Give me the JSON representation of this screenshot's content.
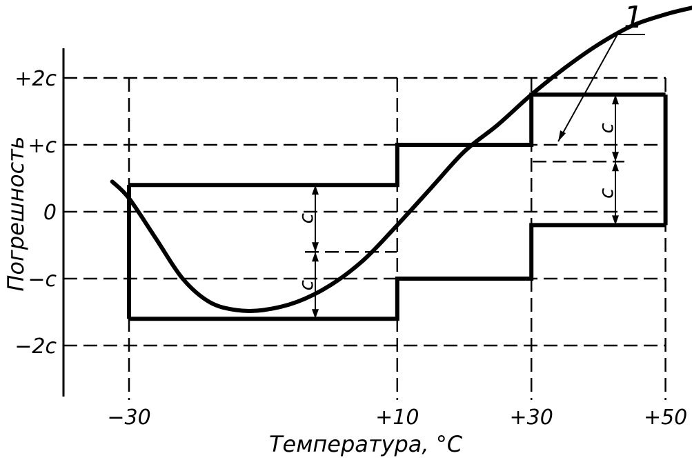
{
  "chart_data": {
    "type": "line",
    "xlabel": "Температура, °C",
    "ylabel": "Погрешность",
    "x_ticks": [
      "−30",
      "+10",
      "+30",
      "+50"
    ],
    "x_tick_values": [
      -30,
      10,
      30,
      50
    ],
    "y_ticks": [
      "+2c",
      "+c",
      "0",
      "−c",
      "−2c"
    ],
    "y_tick_values": [
      2,
      1,
      0,
      -1,
      -2
    ],
    "grid": "dashed",
    "callout": "1",
    "dimension_label": "c",
    "error_curve": [
      [
        -32.5,
        0.45
      ],
      [
        -30,
        0.2
      ],
      [
        -26,
        -0.4
      ],
      [
        -22,
        -1.0
      ],
      [
        -18,
        -1.35
      ],
      [
        -14,
        -1.47
      ],
      [
        -10,
        -1.47
      ],
      [
        -5,
        -1.35
      ],
      [
        0,
        -1.1
      ],
      [
        5,
        -0.72
      ],
      [
        10,
        -0.2
      ],
      [
        15,
        0.35
      ],
      [
        20,
        0.9
      ],
      [
        25,
        1.3
      ],
      [
        30,
        1.75
      ],
      [
        35,
        2.15
      ],
      [
        40,
        2.5
      ],
      [
        45,
        2.78
      ],
      [
        50,
        2.95
      ],
      [
        54,
        3.05
      ]
    ],
    "tolerance_band": {
      "upper": [
        [
          -30,
          0.4
        ],
        [
          10,
          0.4
        ],
        [
          10,
          1.0
        ],
        [
          30,
          1.0
        ],
        [
          30,
          1.75
        ],
        [
          50,
          1.75
        ]
      ],
      "lower": [
        [
          -30,
          -1.6
        ],
        [
          10,
          -1.6
        ],
        [
          10,
          -1.0
        ],
        [
          30,
          -1.0
        ],
        [
          30,
          -0.2
        ],
        [
          50,
          -0.2
        ]
      ]
    }
  }
}
